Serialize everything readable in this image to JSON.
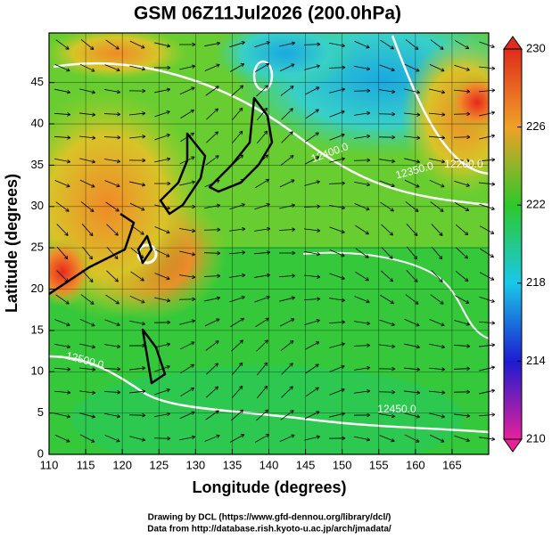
{
  "chart_data": {
    "type": "contour",
    "title": "GSM 06Z11Jul2026 (200.0hPa)",
    "x_label": "Longitude (degrees)",
    "y_label": "Latitude  (degrees)",
    "xlim": [
      110,
      170
    ],
    "ylim": [
      0,
      51
    ],
    "xticks": [
      110,
      115,
      120,
      125,
      130,
      135,
      140,
      145,
      150,
      155,
      160,
      165
    ],
    "yticks": [
      0,
      5,
      10,
      15,
      20,
      25,
      30,
      35,
      40,
      45
    ],
    "grid": true,
    "contour_labels": [
      "12400.0",
      "12350.0",
      "12500.0",
      "12450.0",
      "12200.0"
    ],
    "colorbar": {
      "lim": [
        210,
        230
      ],
      "ticks": [
        210,
        214,
        218,
        222,
        226,
        230
      ],
      "colors": [
        "#e8209a",
        "#1c1cd0",
        "#19c8e8",
        "#2ec82a",
        "#f0a028",
        "#e02c1c"
      ]
    },
    "footer": [
      "Drawing by DCL (https://www.gfd-dennou.org/library/dcl/)",
      "Data from http://database.rish.kyoto-u.ac.jp/arch/jmadata/"
    ]
  }
}
